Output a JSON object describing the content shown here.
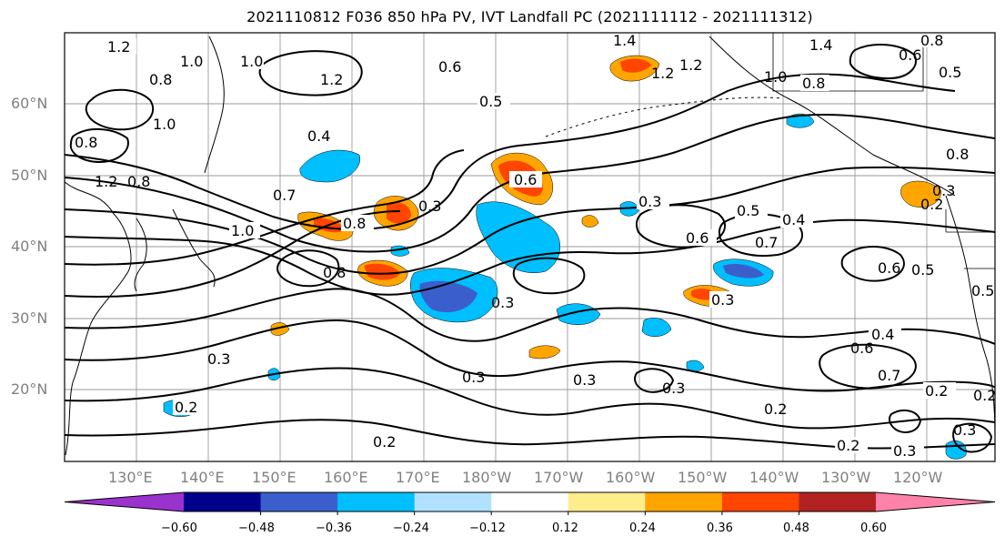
{
  "title": "2021110812 F036 850 hPa PV, IVT Landfall PC (2021111112 - 2021111312)",
  "lon_labels": [
    "130°E",
    "140°E",
    "150°E",
    "160°E",
    "170°E",
    "180°W",
    "170°W",
    "160°W",
    "150°W",
    "140°W",
    "130°W",
    "120°W"
  ],
  "lat_labels": [
    "60°N",
    "50°N",
    "40°N",
    "30°N",
    "20°N"
  ],
  "colorbar": {
    "colors": [
      "#9a32cd",
      "#00008b",
      "#3a5fcd",
      "#00bfff",
      "#b0e2ff",
      "#ffffff",
      "#ffec8b",
      "#ffa500",
      "#ff4500",
      "#b22222",
      "#ff82ab"
    ],
    "tick_labels": [
      "−0.60",
      "−0.48",
      "−0.36",
      "−0.24",
      "−0.12",
      "0.12",
      "0.24",
      "0.36",
      "0.48",
      "0.60"
    ]
  },
  "contour_labels": [
    "1.2",
    "1.0",
    "0.8",
    "1.0",
    "1.2",
    "0.6",
    "1.4",
    "1.2",
    "1.4",
    "1.2",
    "1.0",
    "0.8",
    "0.5",
    "0.8",
    "0.6",
    "0.5",
    "0.8",
    "1.0",
    "0.8",
    "1.2",
    "0.8",
    "0.4",
    "0.3",
    "0.7",
    "1.0",
    "0.8",
    "0.8",
    "0.6",
    "0.3",
    "0.3",
    "0.5",
    "0.4",
    "0.6",
    "0.7",
    "0.5",
    "0.3",
    "0.6",
    "0.5",
    "0.3",
    "0.3",
    "0.3",
    "0.3",
    "0.3",
    "0.4",
    "0.6",
    "0.7",
    "0.2",
    "0.2",
    "0.2",
    "0.2",
    "0.2",
    "0.3",
    "0.3",
    "0.2",
    "0.2"
  ]
}
